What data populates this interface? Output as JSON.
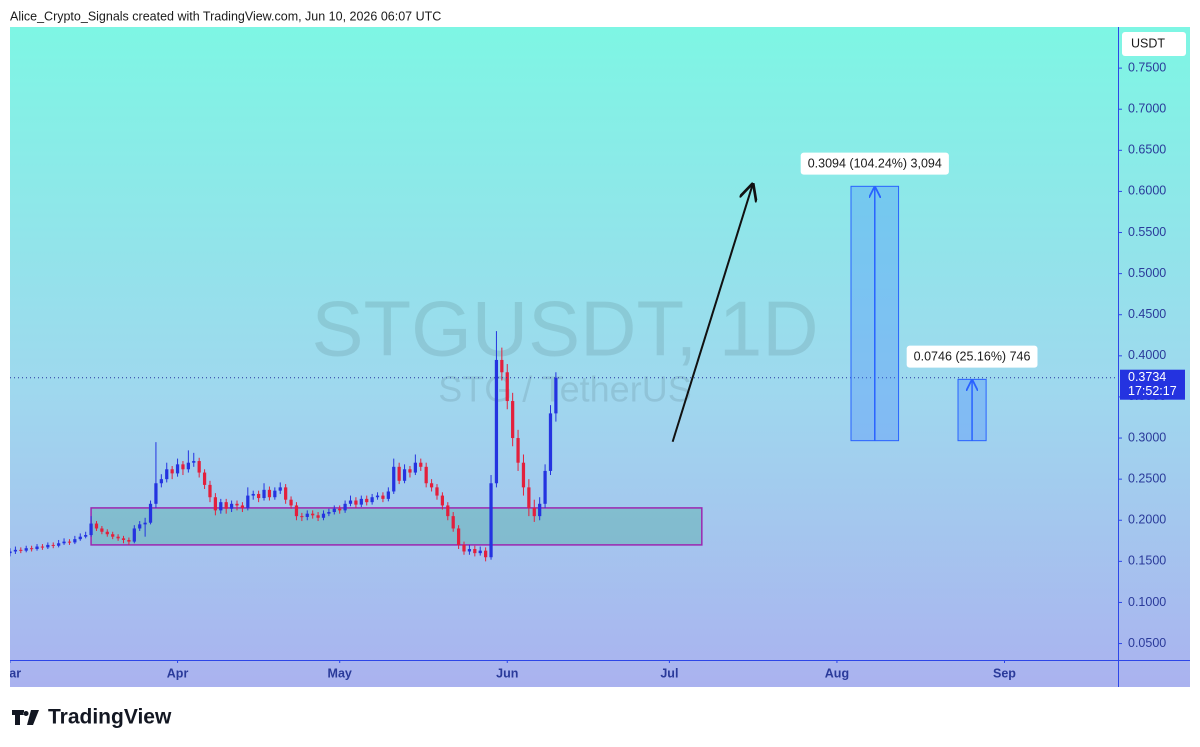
{
  "header": {
    "text": "Alice_Crypto_Signals created with TradingView.com, Jun 10, 2026 06:07 UTC"
  },
  "chart_data": {
    "type": "candlestick",
    "title": "STGUSDT, 1D",
    "subtitle": "STG / TetherUS",
    "y_unit": "USDT",
    "up_color": "#2433e0",
    "down_color": "#e3203c",
    "xlim": [
      60,
      265
    ],
    "xticks": [
      {
        "value": 60,
        "label": "Mar"
      },
      {
        "value": 91,
        "label": "Apr"
      },
      {
        "value": 121,
        "label": "May"
      },
      {
        "value": 152,
        "label": "Jun"
      },
      {
        "value": 182,
        "label": "Jul"
      },
      {
        "value": 213,
        "label": "Aug"
      },
      {
        "value": 244,
        "label": "Sep"
      }
    ],
    "ylim": [
      0.03,
      0.8
    ],
    "yticks": [
      {
        "value": 0.05,
        "label": "0.0500"
      },
      {
        "value": 0.1,
        "label": "0.1000"
      },
      {
        "value": 0.15,
        "label": "0.1500"
      },
      {
        "value": 0.2,
        "label": "0.2000"
      },
      {
        "value": 0.25,
        "label": "0.2500"
      },
      {
        "value": 0.3,
        "label": "0.3000"
      },
      {
        "value": 0.35,
        "label": "0.3500"
      },
      {
        "value": 0.4,
        "label": "0.4000"
      },
      {
        "value": 0.45,
        "label": "0.4500"
      },
      {
        "value": 0.5,
        "label": "0.5000"
      },
      {
        "value": 0.55,
        "label": "0.5500"
      },
      {
        "value": 0.6,
        "label": "0.6000"
      },
      {
        "value": 0.65,
        "label": "0.6500"
      },
      {
        "value": 0.7,
        "label": "0.7000"
      },
      {
        "value": 0.75,
        "label": "0.7500"
      }
    ],
    "x": [
      60,
      61,
      62,
      63,
      64,
      65,
      66,
      67,
      68,
      69,
      70,
      71,
      72,
      73,
      74,
      75,
      76,
      77,
      78,
      79,
      80,
      81,
      82,
      83,
      84,
      85,
      86,
      87,
      88,
      89,
      90,
      91,
      92,
      93,
      94,
      95,
      96,
      97,
      98,
      99,
      100,
      101,
      102,
      103,
      104,
      105,
      106,
      107,
      108,
      109,
      110,
      111,
      112,
      113,
      114,
      115,
      116,
      117,
      118,
      119,
      120,
      121,
      122,
      123,
      124,
      125,
      126,
      127,
      128,
      129,
      130,
      131,
      132,
      133,
      134,
      135,
      136,
      137,
      138,
      139,
      140,
      141,
      142,
      143,
      144,
      145,
      146,
      147,
      148,
      149,
      150,
      151,
      152,
      153,
      154,
      155,
      156,
      157,
      158,
      159,
      160,
      161
    ],
    "ohlc": [
      [
        0.16,
        0.166,
        0.156,
        0.162
      ],
      [
        0.162,
        0.168,
        0.159,
        0.164
      ],
      [
        0.164,
        0.167,
        0.16,
        0.163
      ],
      [
        0.163,
        0.169,
        0.161,
        0.166
      ],
      [
        0.166,
        0.169,
        0.162,
        0.165
      ],
      [
        0.165,
        0.171,
        0.163,
        0.168
      ],
      [
        0.168,
        0.171,
        0.164,
        0.167
      ],
      [
        0.167,
        0.173,
        0.165,
        0.17
      ],
      [
        0.17,
        0.173,
        0.166,
        0.169
      ],
      [
        0.169,
        0.176,
        0.167,
        0.172
      ],
      [
        0.172,
        0.178,
        0.17,
        0.174
      ],
      [
        0.174,
        0.177,
        0.17,
        0.173
      ],
      [
        0.173,
        0.181,
        0.171,
        0.177
      ],
      [
        0.177,
        0.184,
        0.175,
        0.18
      ],
      [
        0.18,
        0.186,
        0.178,
        0.182
      ],
      [
        0.182,
        0.205,
        0.18,
        0.196
      ],
      [
        0.196,
        0.199,
        0.187,
        0.19
      ],
      [
        0.19,
        0.193,
        0.183,
        0.186
      ],
      [
        0.186,
        0.189,
        0.18,
        0.183
      ],
      [
        0.183,
        0.186,
        0.177,
        0.18
      ],
      [
        0.18,
        0.183,
        0.175,
        0.178
      ],
      [
        0.178,
        0.181,
        0.172,
        0.176
      ],
      [
        0.176,
        0.179,
        0.17,
        0.174
      ],
      [
        0.174,
        0.194,
        0.172,
        0.19
      ],
      [
        0.19,
        0.199,
        0.187,
        0.195
      ],
      [
        0.195,
        0.203,
        0.18,
        0.197
      ],
      [
        0.197,
        0.224,
        0.195,
        0.22
      ],
      [
        0.22,
        0.295,
        0.215,
        0.245
      ],
      [
        0.245,
        0.256,
        0.24,
        0.25
      ],
      [
        0.25,
        0.27,
        0.246,
        0.262
      ],
      [
        0.262,
        0.266,
        0.25,
        0.257
      ],
      [
        0.257,
        0.275,
        0.253,
        0.268
      ],
      [
        0.268,
        0.272,
        0.255,
        0.262
      ],
      [
        0.262,
        0.285,
        0.258,
        0.27
      ],
      [
        0.27,
        0.282,
        0.265,
        0.272
      ],
      [
        0.272,
        0.276,
        0.252,
        0.258
      ],
      [
        0.258,
        0.262,
        0.238,
        0.243
      ],
      [
        0.243,
        0.248,
        0.222,
        0.228
      ],
      [
        0.228,
        0.233,
        0.206,
        0.212
      ],
      [
        0.212,
        0.226,
        0.208,
        0.222
      ],
      [
        0.222,
        0.226,
        0.208,
        0.214
      ],
      [
        0.214,
        0.224,
        0.21,
        0.22
      ],
      [
        0.22,
        0.224,
        0.212,
        0.218
      ],
      [
        0.218,
        0.222,
        0.21,
        0.215
      ],
      [
        0.215,
        0.24,
        0.212,
        0.23
      ],
      [
        0.23,
        0.236,
        0.225,
        0.232
      ],
      [
        0.232,
        0.236,
        0.222,
        0.227
      ],
      [
        0.227,
        0.245,
        0.224,
        0.237
      ],
      [
        0.237,
        0.241,
        0.224,
        0.228
      ],
      [
        0.228,
        0.24,
        0.225,
        0.236
      ],
      [
        0.236,
        0.246,
        0.232,
        0.24
      ],
      [
        0.24,
        0.244,
        0.22,
        0.225
      ],
      [
        0.225,
        0.229,
        0.214,
        0.218
      ],
      [
        0.218,
        0.222,
        0.2,
        0.205
      ],
      [
        0.205,
        0.209,
        0.199,
        0.204
      ],
      [
        0.204,
        0.212,
        0.2,
        0.208
      ],
      [
        0.208,
        0.212,
        0.202,
        0.206
      ],
      [
        0.206,
        0.21,
        0.199,
        0.203
      ],
      [
        0.203,
        0.212,
        0.2,
        0.208
      ],
      [
        0.208,
        0.214,
        0.205,
        0.21
      ],
      [
        0.21,
        0.218,
        0.207,
        0.214
      ],
      [
        0.214,
        0.218,
        0.208,
        0.212
      ],
      [
        0.212,
        0.224,
        0.209,
        0.22
      ],
      [
        0.22,
        0.23,
        0.217,
        0.224
      ],
      [
        0.224,
        0.228,
        0.215,
        0.219
      ],
      [
        0.219,
        0.23,
        0.216,
        0.226
      ],
      [
        0.226,
        0.23,
        0.218,
        0.222
      ],
      [
        0.222,
        0.232,
        0.219,
        0.228
      ],
      [
        0.228,
        0.234,
        0.225,
        0.23
      ],
      [
        0.23,
        0.234,
        0.222,
        0.226
      ],
      [
        0.226,
        0.24,
        0.223,
        0.235
      ],
      [
        0.235,
        0.275,
        0.232,
        0.265
      ],
      [
        0.265,
        0.27,
        0.244,
        0.248
      ],
      [
        0.248,
        0.268,
        0.245,
        0.262
      ],
      [
        0.262,
        0.266,
        0.252,
        0.258
      ],
      [
        0.258,
        0.28,
        0.255,
        0.27
      ],
      [
        0.27,
        0.275,
        0.26,
        0.265
      ],
      [
        0.265,
        0.27,
        0.24,
        0.245
      ],
      [
        0.245,
        0.25,
        0.235,
        0.24
      ],
      [
        0.24,
        0.244,
        0.225,
        0.23
      ],
      [
        0.23,
        0.234,
        0.213,
        0.218
      ],
      [
        0.218,
        0.222,
        0.2,
        0.205
      ],
      [
        0.205,
        0.21,
        0.186,
        0.19
      ],
      [
        0.19,
        0.194,
        0.165,
        0.17
      ],
      [
        0.17,
        0.174,
        0.158,
        0.162
      ],
      [
        0.162,
        0.17,
        0.158,
        0.165
      ],
      [
        0.165,
        0.169,
        0.156,
        0.16
      ],
      [
        0.16,
        0.168,
        0.157,
        0.163
      ],
      [
        0.163,
        0.167,
        0.15,
        0.155
      ],
      [
        0.155,
        0.255,
        0.152,
        0.245
      ],
      [
        0.245,
        0.43,
        0.24,
        0.395
      ],
      [
        0.395,
        0.41,
        0.37,
        0.38
      ],
      [
        0.38,
        0.39,
        0.335,
        0.345
      ],
      [
        0.345,
        0.355,
        0.29,
        0.3
      ],
      [
        0.3,
        0.31,
        0.26,
        0.27
      ],
      [
        0.27,
        0.28,
        0.23,
        0.24
      ],
      [
        0.24,
        0.25,
        0.205,
        0.215
      ],
      [
        0.215,
        0.225,
        0.198,
        0.205
      ],
      [
        0.205,
        0.228,
        0.2,
        0.22
      ],
      [
        0.22,
        0.268,
        0.215,
        0.26
      ],
      [
        0.26,
        0.34,
        0.255,
        0.33
      ],
      [
        0.33,
        0.38,
        0.32,
        0.3734
      ]
    ],
    "last_price": {
      "value": 0.3734,
      "label": "0.3734",
      "countdown": "17:52:17"
    },
    "zone": {
      "x": [
        75,
        188
      ],
      "y": [
        0.17,
        0.215
      ]
    },
    "arrow": {
      "x": [
        182.6,
        197.4
      ],
      "y": [
        0.2955,
        0.6083
      ]
    },
    "measures": [
      {
        "x": [
          215.6,
          224.4
        ],
        "y": [
          0.2968,
          0.6062
        ],
        "label": "0.3094 (104.24%) 3,094"
      },
      {
        "x": [
          235.4,
          240.6
        ],
        "y": [
          0.2968,
          0.3714
        ],
        "label": "0.0746 (25.16%) 746"
      }
    ]
  },
  "footer": {
    "brand": "TradingView"
  }
}
